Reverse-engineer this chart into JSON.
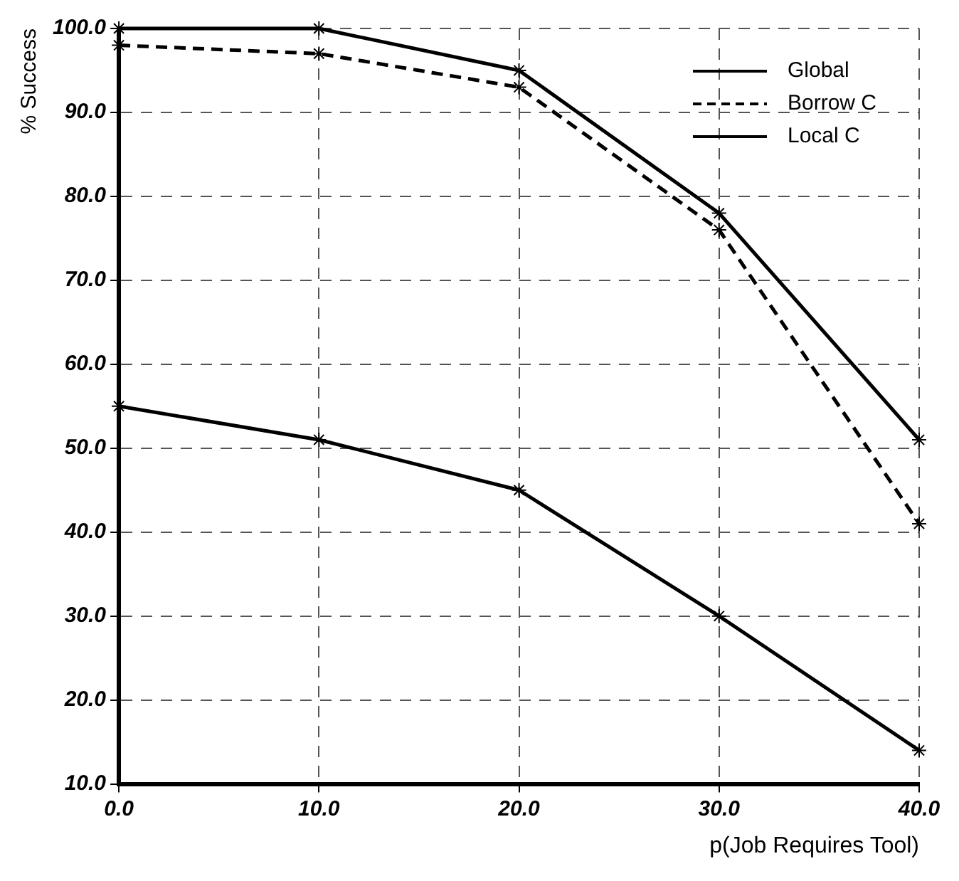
{
  "chart_data": {
    "type": "line",
    "x": [
      0,
      10,
      20,
      30,
      40
    ],
    "series": [
      {
        "name": "Global",
        "color": "#000000",
        "line_style": "solid",
        "values": [
          100,
          100,
          95,
          78,
          51
        ]
      },
      {
        "name": "Borrow C",
        "color": "#000000",
        "line_style": "dashed",
        "values": [
          98,
          97,
          93,
          76,
          41
        ]
      },
      {
        "name": "Local C",
        "color": "#000000",
        "line_style": "solid",
        "values": [
          55,
          51,
          45,
          30,
          14
        ]
      }
    ],
    "marker": "cross",
    "xlabel": "p(Job Requires Tool)",
    "ylabel": "% Success",
    "xlim": [
      0,
      40
    ],
    "xticks": [
      {
        "value": 0,
        "label": "0.0"
      },
      {
        "value": 10,
        "label": "10.0"
      },
      {
        "value": 20,
        "label": "20.0"
      },
      {
        "value": 30,
        "label": "30.0"
      },
      {
        "value": 40,
        "label": "40.0"
      }
    ],
    "ylim": [
      10,
      100
    ],
    "yticks": [
      {
        "value": 10,
        "label": "10.0"
      },
      {
        "value": 20,
        "label": "20.0"
      },
      {
        "value": 30,
        "label": "30.0"
      },
      {
        "value": 40,
        "label": "40.0"
      },
      {
        "value": 50,
        "label": "50.0"
      },
      {
        "value": 60,
        "label": "60.0"
      },
      {
        "value": 70,
        "label": "70.0"
      },
      {
        "value": 80,
        "label": "80.0"
      },
      {
        "value": 90,
        "label": "90.0"
      },
      {
        "value": 100,
        "label": "100.0"
      }
    ],
    "grid": true,
    "legend": "top right"
  }
}
